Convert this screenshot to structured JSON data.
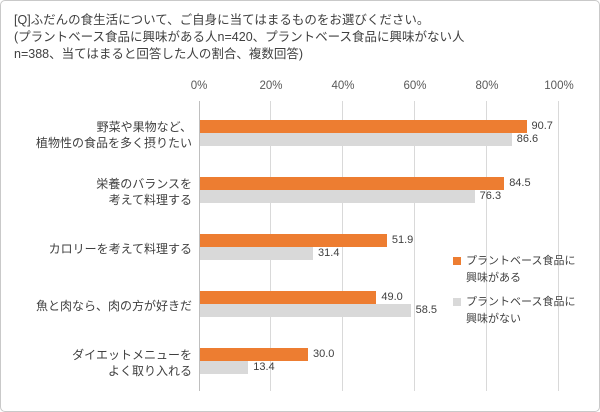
{
  "header": {
    "line1": "[Q]ふだんの食生活について、ご自身に当てはまるものをお選びください。",
    "line2": "(プラントベース食品に興味がある人n=420、プラントベース食品に興味がない人",
    "line3": "n=388、当てはまると回答した人の割合、複数回答)"
  },
  "chart_data": {
    "type": "bar",
    "orientation": "horizontal",
    "title": "[Q]ふだんの食生活について、ご自身に当てはまるものをお選びください。(プラントベース食品に興味がある人n=420、プラントベース食品に興味がない人n=388、当てはまると回答した人の割合、複数回答)",
    "categories": [
      [
        "野菜や果物など、",
        "植物性の食品を多く摂りたい"
      ],
      [
        "栄養のバランスを",
        "考えて料理する"
      ],
      [
        "カロリーを考えて料理する"
      ],
      [
        "魚と肉なら、肉の方が好きだ"
      ],
      [
        "ダイエットメニューを",
        "よく取り入れる"
      ]
    ],
    "series": [
      {
        "name": "プラントベース食品に興味がある",
        "color": "#ED7D31",
        "values": [
          90.7,
          84.5,
          51.9,
          49.0,
          30.0
        ]
      },
      {
        "name": "プラントベース食品に興味がない",
        "color": "#D9D9D9",
        "values": [
          86.6,
          76.3,
          31.4,
          58.5,
          13.4
        ]
      }
    ],
    "xaxis": {
      "ticks": [
        "0%",
        "20%",
        "40%",
        "60%",
        "80%",
        "100%"
      ],
      "min": 0,
      "max": 100,
      "position": "top"
    },
    "value_label_decimals": 1,
    "legend_position": "right",
    "grid": true
  },
  "colors": {
    "text": "#404040",
    "axis_text": "#595959",
    "gridline": "#D9D9D9",
    "axis_line": "#BFBFBF",
    "border": "#C9C9C9",
    "background": "#FFFFFF"
  }
}
